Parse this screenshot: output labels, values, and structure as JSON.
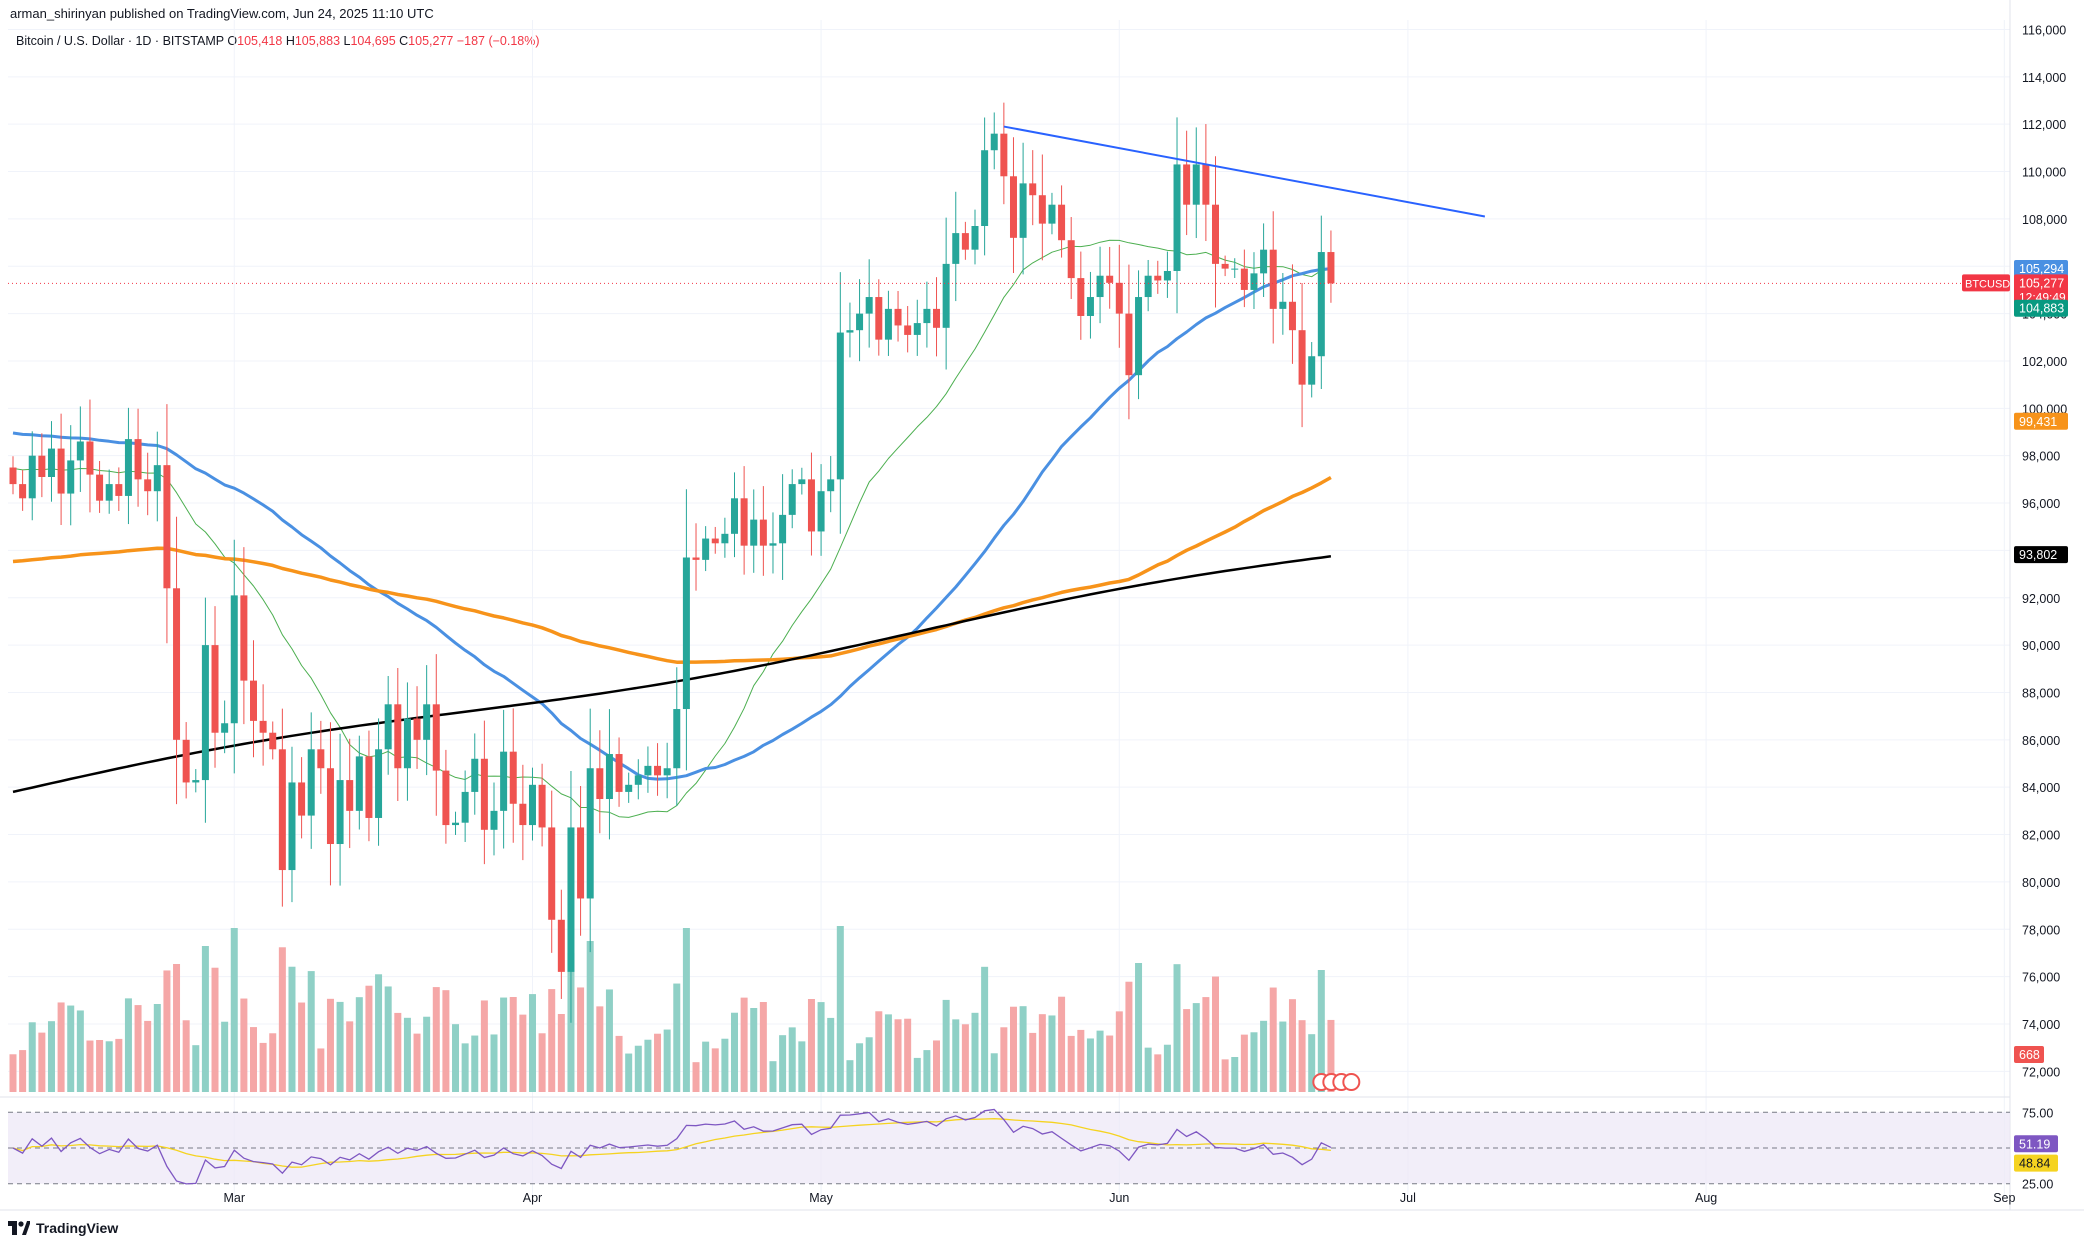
{
  "header": {
    "published": "arman_shirinyan published on TradingView.com, Jun 24, 2025 11:10 UTC"
  },
  "symbol": {
    "name": "Bitcoin / U.S. Dollar · 1D · BITSTAMP",
    "o_label": "O",
    "o": "105,418",
    "h_label": "H",
    "h": "105,883",
    "l_label": "L",
    "l": "104,695",
    "c_label": "C",
    "c": "105,277",
    "change": "−187 (−0.18%)"
  },
  "footer": {
    "brand": "TradingView"
  },
  "colors": {
    "up": "#26a69a",
    "down": "#ef5350",
    "vol_up": "#8fd0c6",
    "vol_down": "#f5a7a7",
    "ma_fast": "#4caf50",
    "ma_blue": "#4a90e2",
    "ma_orange": "#f7931a",
    "ma_black": "#000000",
    "trendline": "#2962ff",
    "rsi_line": "#7e57c2",
    "rsi_ma": "#f5d320"
  },
  "chart_data": {
    "type": "candlestick",
    "symbol": "BTCUSD",
    "y_ticks": [
      72000,
      74000,
      76000,
      78000,
      80000,
      82000,
      84000,
      86000,
      88000,
      90000,
      92000,
      94000,
      96000,
      98000,
      100000,
      102000,
      104000,
      106000,
      108000,
      110000,
      112000,
      114000,
      116000
    ],
    "y_tick_labels": [
      "72,000",
      "74,000",
      "76,000",
      "78,000",
      "80,000",
      "82,000",
      "84,000",
      "86,000",
      "88,000",
      "90,000",
      "92,000",
      "94,000",
      "96,000",
      "98,000",
      "100,000",
      "102,000",
      "104,000",
      "106,000",
      "108,000",
      "110,000",
      "112,000",
      "114,000",
      "116,000"
    ],
    "x_labels": [
      {
        "day": 23,
        "label": "Mar"
      },
      {
        "day": 54,
        "label": "Apr"
      },
      {
        "day": 84,
        "label": "May"
      },
      {
        "day": 115,
        "label": "Jun"
      },
      {
        "day": 145,
        "label": "Jul"
      },
      {
        "day": 176,
        "label": "Aug"
      },
      {
        "day": 207,
        "label": "Sep"
      }
    ],
    "price_tags": [
      {
        "value": 105294,
        "label": "105,294",
        "color": "#4a90e2"
      },
      {
        "value": 105277,
        "label": "105,277",
        "sub": "12:49:49",
        "color": "#f23645",
        "name": "BTCUSD"
      },
      {
        "value": 104883,
        "label": "104,883",
        "color": "#089981"
      },
      {
        "value": 99431,
        "label": "99,431",
        "color": "#f7931a"
      },
      {
        "value": 93802,
        "label": "93,802",
        "color": "#000000"
      }
    ],
    "volume_tag": {
      "label": "668",
      "color": "#ef5350"
    },
    "trendline": {
      "from": {
        "day": 103,
        "price": 111900
      },
      "to": {
        "day": 153,
        "price": 108100
      }
    },
    "closes": [
      96800,
      96200,
      98000,
      97100,
      98300,
      96400,
      97800,
      98600,
      97200,
      96100,
      96800,
      96300,
      98700,
      97000,
      96500,
      97600,
      92400,
      86000,
      84200,
      84300,
      90000,
      86300,
      86700,
      92100,
      88500,
      86800,
      86300,
      85600,
      80500,
      84200,
      82800,
      85600,
      84800,
      81600,
      84300,
      83000,
      85300,
      82700,
      85600,
      87500,
      84800,
      86900,
      86000,
      87500,
      84700,
      82400,
      82500,
      83800,
      85200,
      82200,
      83000,
      85500,
      83300,
      82400,
      84100,
      82300,
      78400,
      76200,
      82300,
      79300,
      84800,
      83500,
      85400,
      83800,
      84100,
      84500,
      84900,
      84500,
      84800,
      87300,
      93700,
      93600,
      94500,
      94300,
      94700,
      96200,
      94200,
      95300,
      94200,
      94300,
      95500,
      96800,
      97000,
      94800,
      96500,
      97000,
      103200,
      103300,
      104000,
      104700,
      102900,
      104200,
      103500,
      103100,
      103600,
      104200,
      103400,
      106100,
      107400,
      106700,
      107700,
      110900,
      111600,
      109800,
      107200,
      109500,
      109000,
      107800,
      108600,
      107100,
      105500,
      103900,
      104700,
      105600,
      105300,
      104000,
      101400,
      104700,
      105600,
      105400,
      105800,
      110300,
      108600,
      110300,
      108600,
      106100,
      105900,
      105900,
      105000,
      105700,
      106700,
      104200,
      104500,
      103300,
      101000,
      102200,
      106600,
      105277
    ],
    "volume_levels_note": "volume bars as relative units",
    "rsi": {
      "upper": 75,
      "lower": 25,
      "upper_label": "75.00",
      "lower_label": "25.00",
      "value": 51.19,
      "value_label": "51.19",
      "ma_value": 48.84,
      "ma_label": "48.84"
    }
  }
}
